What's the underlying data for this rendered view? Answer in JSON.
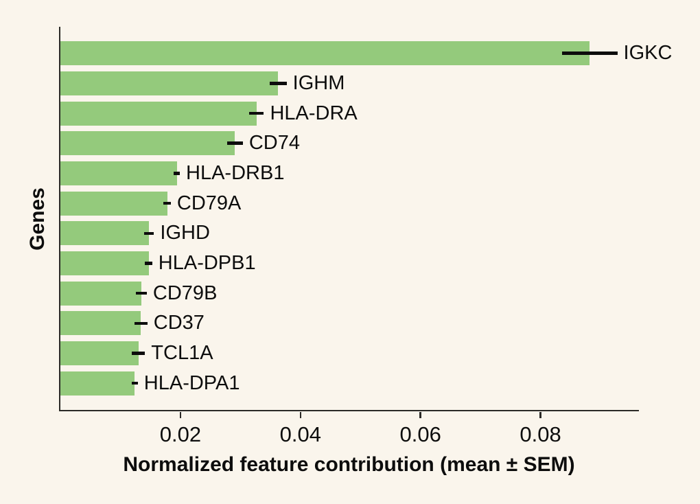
{
  "figure": {
    "background_color": "#faf5ec",
    "bar_color": "#94ca7c",
    "axis_color": "#2b2a27",
    "errorbar_color": "#0d0d0d",
    "text_color": "#0d0d0d"
  },
  "chart_data": {
    "type": "bar",
    "orientation": "horizontal",
    "title": "",
    "xlabel": "Normalized feature contribution (mean ± SEM)",
    "ylabel": "Genes",
    "grid": false,
    "legend": false,
    "xlim": [
      0,
      0.0964
    ],
    "xticks": [
      0.02,
      0.04,
      0.06,
      0.08
    ],
    "xtick_labels": [
      "0.02",
      "0.04",
      "0.06",
      "0.08"
    ],
    "categories": [
      "IGKC",
      "IGHM",
      "HLA-DRA",
      "CD74",
      "HLA-DRB1",
      "CD79A",
      "IGHD",
      "HLA-DPB1",
      "CD79B",
      "CD37",
      "TCL1A",
      "HLA-DPA1"
    ],
    "series": [
      {
        "name": "mean",
        "values": [
          0.0882,
          0.0363,
          0.0327,
          0.0291,
          0.0194,
          0.0178,
          0.0148,
          0.0147,
          0.0135,
          0.0134,
          0.013,
          0.0124
        ]
      },
      {
        "name": "sem",
        "values": [
          0.0046,
          0.0014,
          0.0012,
          0.0013,
          0.0005,
          0.0006,
          0.0008,
          0.0006,
          0.0009,
          0.0011,
          0.0011,
          0.0005
        ]
      }
    ]
  }
}
